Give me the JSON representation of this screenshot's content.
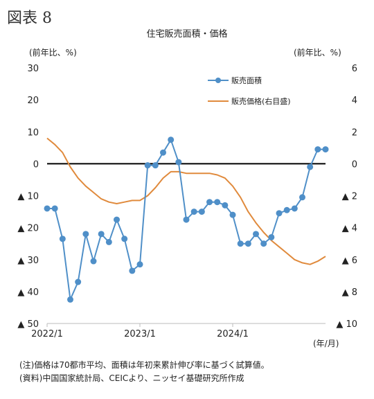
{
  "figure_label": "図表 8",
  "notes": [
    "(注)価格は70都市平均、面積は年初来累計伸び率に基づく試算値。",
    "(資料)中国国家統計局、CEICより、ニッセイ基礎研究所作成"
  ],
  "chart_data": {
    "type": "line",
    "title": "住宅販売面積・価格",
    "left_axis": {
      "label": "(前年比、%)",
      "range": [
        -50,
        30
      ],
      "ticks": [
        30,
        20,
        10,
        0,
        -10,
        -20,
        -30,
        -40,
        -50
      ],
      "tick_labels": [
        "30",
        "20",
        "10",
        "0",
        "▲ 10",
        "▲ 20",
        "▲ 30",
        "▲ 40",
        "▲ 50"
      ]
    },
    "right_axis": {
      "label": "(前年比、%)",
      "range": [
        -10,
        6
      ],
      "ticks": [
        6,
        4,
        2,
        0,
        -2,
        -4,
        -6,
        -8,
        -10
      ],
      "tick_labels": [
        "6",
        "4",
        "2",
        "0",
        "▲ 2",
        "▲ 4",
        "▲ 6",
        "▲ 8",
        "▲ 10"
      ]
    },
    "x_axis": {
      "unit_label": "(年/月)",
      "start": "2022/1",
      "tick_labels": [
        {
          "label": "2022/1",
          "index": 0
        },
        {
          "label": "2023/1",
          "index": 12
        },
        {
          "label": "2024/1",
          "index": 24
        }
      ]
    },
    "months": [
      "2022/1",
      "2022/2",
      "2022/3",
      "2022/4",
      "2022/5",
      "2022/6",
      "2022/7",
      "2022/8",
      "2022/9",
      "2022/10",
      "2022/11",
      "2022/12",
      "2023/1",
      "2023/2",
      "2023/3",
      "2023/4",
      "2023/5",
      "2023/6",
      "2023/7",
      "2023/8",
      "2023/9",
      "2023/10",
      "2023/11",
      "2023/12",
      "2024/1",
      "2024/2",
      "2024/3",
      "2024/4",
      "2024/5",
      "2024/6",
      "2024/7",
      "2024/8",
      "2024/9",
      "2024/10",
      "2024/11",
      "2024/12",
      "2025/1"
    ],
    "series": [
      {
        "name": "販売面積",
        "axis": "left",
        "color": "#4f8fc8",
        "marker": true,
        "values": [
          -14,
          -14,
          -23.5,
          -42.5,
          -37,
          -22,
          -30.5,
          -22,
          -24.5,
          -17.5,
          -23.5,
          -33.5,
          -31.5,
          -0.5,
          -0.5,
          3.5,
          7.5,
          0.5,
          -17.5,
          -15,
          -15,
          -12,
          -12,
          -13,
          -16,
          -25,
          -25,
          -22,
          -25,
          -23,
          -15.5,
          -14.5,
          -14,
          -10.5,
          -1,
          4.5,
          4.5
        ]
      },
      {
        "name": "販売価格(右目盛)",
        "axis": "right",
        "color": "#e08a3c",
        "marker": false,
        "values": [
          1.6,
          1.2,
          0.7,
          -0.2,
          -0.9,
          -1.4,
          -1.8,
          -2.2,
          -2.4,
          -2.5,
          -2.4,
          -2.3,
          -2.3,
          -2.0,
          -1.5,
          -0.9,
          -0.5,
          -0.5,
          -0.6,
          -0.6,
          -0.6,
          -0.6,
          -0.7,
          -0.9,
          -1.4,
          -2.1,
          -3.0,
          -3.7,
          -4.3,
          -4.8,
          -5.2,
          -5.6,
          -6.0,
          -6.2,
          -6.3,
          -6.1,
          -5.8
        ]
      }
    ],
    "zero_line": true,
    "grid": false,
    "legend_position": "top-right"
  }
}
